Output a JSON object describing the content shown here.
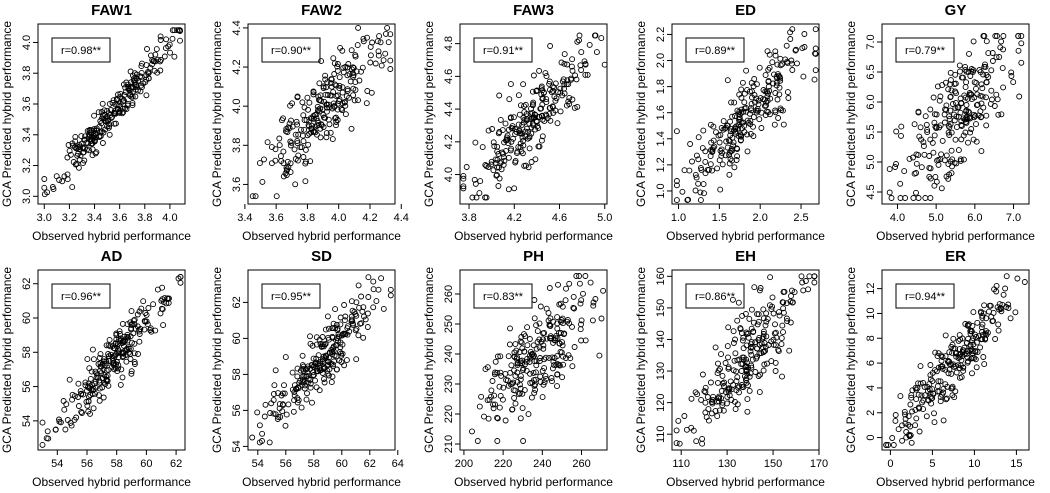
{
  "figure": {
    "xlabel": "Observed hybrid performance",
    "ylabel": "GCA Predicted hybrid performance",
    "point_count": 250
  },
  "chart_data": [
    {
      "type": "scatter",
      "title": "FAW1",
      "annotation": "r=0.98**",
      "r": 0.98,
      "xlabel": "Observed hybrid performance",
      "ylabel": "GCA Predicted hybrid performance",
      "xlim": [
        2.95,
        4.12
      ],
      "ylim": [
        2.95,
        4.12
      ],
      "xticks": [
        3.0,
        3.2,
        3.4,
        3.6,
        3.8,
        4.0
      ],
      "yticks": [
        3.0,
        3.2,
        3.4,
        3.6,
        3.8,
        4.0
      ],
      "xtick_labels": [
        "3.0",
        "3.2",
        "3.4",
        "3.6",
        "3.8",
        "4.0"
      ],
      "ytick_labels": [
        "3.0",
        "3.2",
        "3.4",
        "3.6",
        "3.8",
        "4.0"
      ],
      "x_range": [
        3.0,
        4.08
      ],
      "y_range": [
        3.0,
        4.08
      ],
      "seed": 11
    },
    {
      "type": "scatter",
      "title": "FAW2",
      "annotation": "r=0.90**",
      "r": 0.9,
      "xlabel": "Observed hybrid performance",
      "ylabel": "GCA Predicted hybrid performance",
      "xlim": [
        3.42,
        4.36
      ],
      "ylim": [
        3.5,
        4.42
      ],
      "xticks": [
        3.4,
        3.6,
        3.8,
        4.0,
        4.2,
        4.4
      ],
      "yticks": [
        3.6,
        3.8,
        4.0,
        4.2,
        4.4
      ],
      "xtick_labels": [
        "3.4",
        "3.6",
        "3.8",
        "4.0",
        "4.2",
        "4.4"
      ],
      "ytick_labels": [
        "3.6",
        "3.8",
        "4.0",
        "4.2",
        "4.4"
      ],
      "x_range": [
        3.45,
        4.33
      ],
      "y_range": [
        3.54,
        4.4
      ],
      "seed": 23
    },
    {
      "type": "scatter",
      "title": "FAW3",
      "annotation": "r=0.91**",
      "r": 0.91,
      "xlabel": "Observed hybrid performance",
      "ylabel": "GCA Predicted hybrid performance",
      "xlim": [
        3.72,
        5.02
      ],
      "ylim": [
        3.82,
        4.92
      ],
      "xticks": [
        3.8,
        4.2,
        4.6,
        5.0
      ],
      "yticks": [
        4.0,
        4.2,
        4.4,
        4.6,
        4.8
      ],
      "xtick_labels": [
        "3.8",
        "4.2",
        "4.6",
        "5.0"
      ],
      "ytick_labels": [
        "4.0",
        "4.2",
        "4.4",
        "4.6",
        "4.8"
      ],
      "x_range": [
        3.75,
        5.0
      ],
      "y_range": [
        3.86,
        4.85
      ],
      "seed": 37
    },
    {
      "type": "scatter",
      "title": "ED",
      "annotation": "r=0.89**",
      "r": 0.89,
      "xlabel": "Observed hybrid performance",
      "ylabel": "GCA Predicted hybrid performance",
      "xlim": [
        0.92,
        2.72
      ],
      "ylim": [
        0.9,
        2.28
      ],
      "xticks": [
        1.0,
        1.5,
        2.0,
        2.5
      ],
      "yticks": [
        1.0,
        1.2,
        1.4,
        1.6,
        1.8,
        2.0,
        2.2
      ],
      "xtick_labels": [
        "1.0",
        "1.5",
        "2.0",
        "2.5"
      ],
      "ytick_labels": [
        "1.0",
        "1.2",
        "1.4",
        "1.6",
        "1.8",
        "2.0",
        "2.2"
      ],
      "x_range": [
        0.98,
        2.68
      ],
      "y_range": [
        0.93,
        2.24
      ],
      "seed": 41
    },
    {
      "type": "scatter",
      "title": "GY",
      "annotation": "r=0.79**",
      "r": 0.79,
      "xlabel": "Observed hybrid performance",
      "ylabel": "GCA Predicted hybrid performance",
      "xlim": [
        3.6,
        7.4
      ],
      "ylim": [
        4.3,
        7.3
      ],
      "xticks": [
        4.0,
        5.0,
        6.0,
        7.0
      ],
      "yticks": [
        4.5,
        5.0,
        5.5,
        6.0,
        6.5,
        7.0
      ],
      "xtick_labels": [
        "4.0",
        "5.0",
        "6.0",
        "7.0"
      ],
      "ytick_labels": [
        "4.5",
        "5.0",
        "5.5",
        "6.0",
        "6.5",
        "7.0"
      ],
      "x_range": [
        3.8,
        7.2
      ],
      "y_range": [
        4.4,
        7.1
      ],
      "seed": 53
    },
    {
      "type": "scatter",
      "title": "AD",
      "annotation": "r=0.96**",
      "r": 0.96,
      "xlabel": "Observed hybrid performance",
      "ylabel": "GCA Predicted hybrid performance",
      "xlim": [
        52.7,
        62.6
      ],
      "ylim": [
        52.3,
        62.8
      ],
      "xticks": [
        54,
        56,
        58,
        60,
        62
      ],
      "yticks": [
        54,
        56,
        58,
        60,
        62
      ],
      "xtick_labels": [
        "54",
        "56",
        "58",
        "60",
        "62"
      ],
      "ytick_labels": [
        "54",
        "56",
        "58",
        "60",
        "62"
      ],
      "x_range": [
        53.0,
        62.3
      ],
      "y_range": [
        52.6,
        62.4
      ],
      "seed": 67
    },
    {
      "type": "scatter",
      "title": "SD",
      "annotation": "r=0.95**",
      "r": 0.95,
      "xlabel": "Observed hybrid performance",
      "ylabel": "GCA Predicted hybrid performance",
      "xlim": [
        53.3,
        63.8
      ],
      "ylim": [
        53.8,
        63.8
      ],
      "xticks": [
        54,
        56,
        58,
        60,
        62,
        64
      ],
      "yticks": [
        54,
        56,
        58,
        60,
        62
      ],
      "xtick_labels": [
        "54",
        "56",
        "58",
        "60",
        "62",
        "64"
      ],
      "ytick_labels": [
        "54",
        "56",
        "58",
        "60",
        "62"
      ],
      "x_range": [
        53.6,
        63.5
      ],
      "y_range": [
        54.2,
        63.4
      ],
      "seed": 79
    },
    {
      "type": "scatter",
      "title": "PH",
      "annotation": "r=0.83**",
      "r": 0.83,
      "xlabel": "Observed hybrid performance",
      "ylabel": "GCA Predicted hybrid performance",
      "xlim": [
        198,
        273
      ],
      "ylim": [
        208,
        268
      ],
      "xticks": [
        200,
        220,
        240,
        260
      ],
      "yticks": [
        210,
        220,
        230,
        240,
        250,
        260
      ],
      "xtick_labels": [
        "200",
        "220",
        "240",
        "260"
      ],
      "ytick_labels": [
        "210",
        "220",
        "230",
        "240",
        "250",
        "260"
      ],
      "x_range": [
        200,
        271
      ],
      "y_range": [
        211,
        266
      ],
      "seed": 83
    },
    {
      "type": "scatter",
      "title": "EH",
      "annotation": "r=0.86**",
      "r": 0.86,
      "xlabel": "Observed hybrid performance",
      "ylabel": "GCA Predicted hybrid performance",
      "xlim": [
        106,
        170
      ],
      "ylim": [
        105,
        162
      ],
      "xticks": [
        110,
        130,
        150,
        170
      ],
      "yticks": [
        110,
        120,
        130,
        140,
        150,
        160
      ],
      "xtick_labels": [
        "110",
        "130",
        "150",
        "170"
      ],
      "ytick_labels": [
        "110",
        "120",
        "130",
        "140",
        "150",
        "160"
      ],
      "x_range": [
        108,
        168
      ],
      "y_range": [
        107,
        160
      ],
      "seed": 97
    },
    {
      "type": "scatter",
      "title": "ER",
      "annotation": "r=0.94**",
      "r": 0.94,
      "xlabel": "Observed hybrid performance",
      "ylabel": "GCA Predicted hybrid performance",
      "xlim": [
        -1,
        16.5
      ],
      "ylim": [
        -1,
        13.5
      ],
      "xticks": [
        0,
        5,
        10,
        15
      ],
      "yticks": [
        0,
        2,
        4,
        6,
        8,
        10,
        12
      ],
      "xtick_labels": [
        "0",
        "5",
        "10",
        "15"
      ],
      "ytick_labels": [
        "0",
        "2",
        "4",
        "6",
        "8",
        "10",
        "12"
      ],
      "x_range": [
        -0.5,
        16
      ],
      "y_range": [
        -0.6,
        13
      ],
      "seed": 101
    }
  ]
}
